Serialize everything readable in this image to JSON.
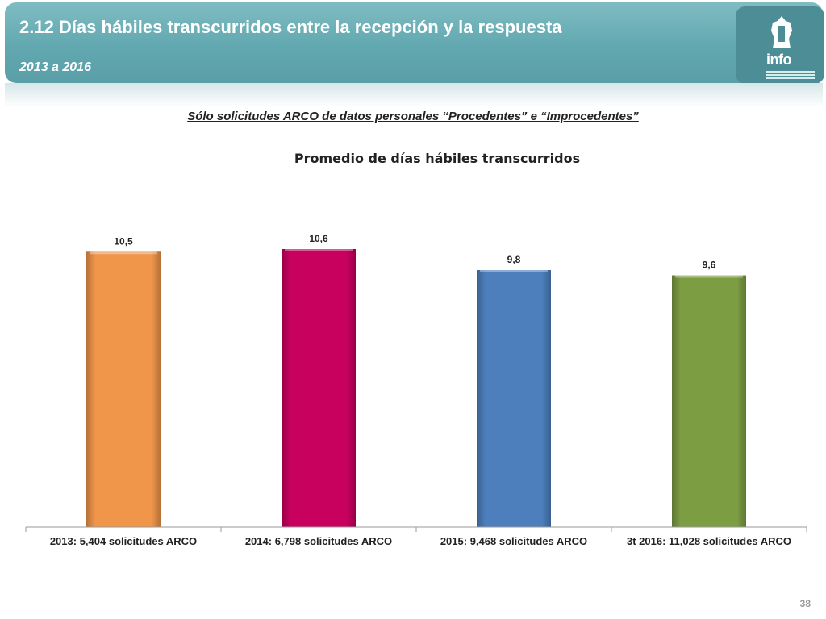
{
  "header": {
    "title": "2.12 Días hábiles transcurridos entre la recepción y la respuesta",
    "subtitle": "2013 a 2016",
    "logo_text": "info"
  },
  "note": "Sólo solicitudes ARCO de datos personales “Procedentes” e “Improcedentes”",
  "chart_data": {
    "type": "bar",
    "title": "Promedio de días hábiles transcurridos",
    "xlabel": "",
    "ylabel": "",
    "categories": [
      "2013: 5,404 solicitudes ARCO",
      "2014: 6,798 solicitudes ARCO",
      "2015: 9,468 solicitudes ARCO",
      "3t 2016: 11,028 solicitudes ARCO"
    ],
    "values": [
      10.5,
      10.6,
      9.8,
      9.6
    ],
    "value_labels": [
      "10,5",
      "10,6",
      "9,8",
      "9,6"
    ],
    "colors": [
      "#f0964a",
      "#c8005e",
      "#4d7fbd",
      "#7d9d43"
    ],
    "ylim": [
      0,
      10.6
    ],
    "grid": false,
    "legend": "none"
  },
  "page_number": "38"
}
